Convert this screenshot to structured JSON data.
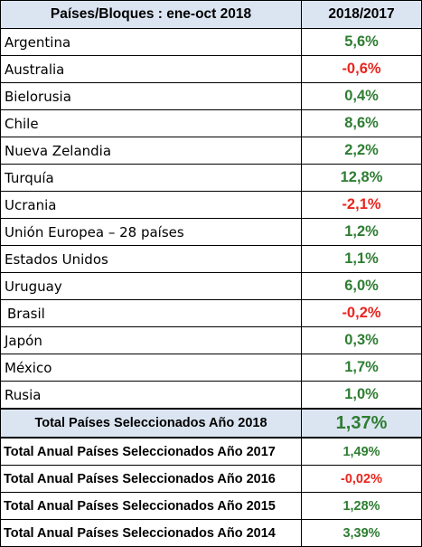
{
  "chart_data": {
    "type": "table",
    "columns": [
      "Países/Bloques : ene-oct 2018",
      "2018/2017"
    ],
    "countries": [
      {
        "name": "Argentina",
        "value": "5,6%",
        "sign": "pos"
      },
      {
        "name": "Australia",
        "value": "-0,6%",
        "sign": "neg"
      },
      {
        "name": "Bielorusia",
        "value": "0,4%",
        "sign": "pos"
      },
      {
        "name": "Chile",
        "value": "8,6%",
        "sign": "pos"
      },
      {
        "name": "Nueva Zelandia",
        "value": "2,2%",
        "sign": "pos"
      },
      {
        "name": "Turquía",
        "value": "12,8%",
        "sign": "pos"
      },
      {
        "name": "Ucrania",
        "value": "-2,1%",
        "sign": "neg"
      },
      {
        "name": "Unión Europea – 28 países",
        "value": "1,2%",
        "sign": "pos"
      },
      {
        "name": "Estados Unidos",
        "value": "1,1%",
        "sign": "pos"
      },
      {
        "name": "Uruguay",
        "value": "6,0%",
        "sign": "pos"
      },
      {
        "name": " Brasil",
        "value": "-0,2%",
        "sign": "neg"
      },
      {
        "name": "Japón",
        "value": "0,3%",
        "sign": "pos"
      },
      {
        "name": "México",
        "value": "1,7%",
        "sign": "pos"
      },
      {
        "name": "Rusia",
        "value": "1,0%",
        "sign": "pos"
      }
    ],
    "total_selected": {
      "name": "Total Países Seleccionados Año 2018",
      "value": "1,37%",
      "sign": "pos"
    },
    "annual_totals": [
      {
        "name": "Total Anual Países Seleccionados Año 2017",
        "value": "1,49%",
        "sign": "pos"
      },
      {
        "name": "Total Anual Países Seleccionados Año 2016",
        "value": "-0,02%",
        "sign": "neg"
      },
      {
        "name": "Total Anual Países Seleccionados Año 2015",
        "value": "1,28%",
        "sign": "pos"
      },
      {
        "name": "Total Anual Países Seleccionados Año 2014",
        "value": "3,39%",
        "sign": "pos"
      }
    ]
  },
  "colors": {
    "positive": "#2e7d32",
    "negative": "#e8251d",
    "header_bg": "#dbe5f1",
    "total_bg": "#dbe5f1"
  }
}
